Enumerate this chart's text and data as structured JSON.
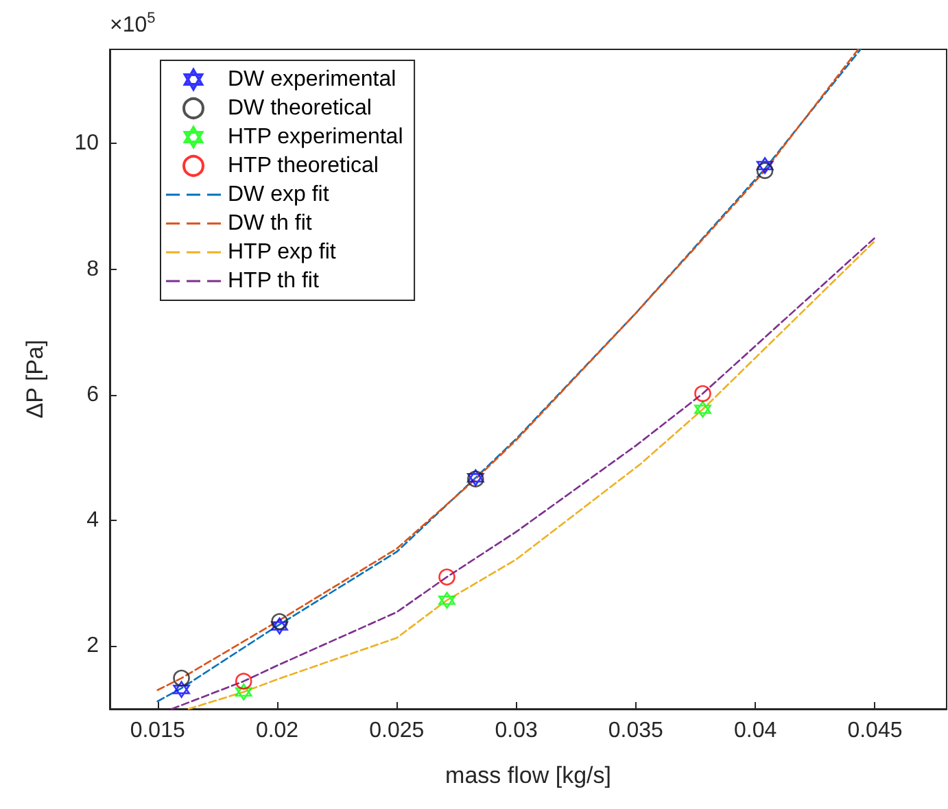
{
  "chart_data": {
    "type": "scatter",
    "xlabel": "mass flow [kg/s]",
    "ylabel": "ΔP [Pa]",
    "annotations": [
      "×10$^{5}$"
    ],
    "xlim": [
      0.013,
      0.048
    ],
    "xticks": [
      0.015,
      0.02,
      0.025,
      0.03,
      0.035,
      0.04,
      0.045
    ],
    "ylim": [
      1,
      11.5
    ],
    "yticks": [
      2,
      4,
      6,
      8,
      10
    ],
    "grid": false,
    "legend": "top left",
    "series": [
      {
        "name": "DW experimental",
        "marker": "star",
        "color": "#0000ff",
        "x": [
          0.016,
          0.0201,
          0.0283,
          0.0404
        ],
        "values": [
          1.31,
          2.32,
          4.68,
          9.65
        ]
      },
      {
        "name": "DW theoretical",
        "marker": "circle",
        "color": "#262626",
        "x": [
          0.016,
          0.0201,
          0.0283,
          0.0404
        ],
        "values": [
          1.49,
          2.39,
          4.66,
          9.57
        ]
      },
      {
        "name": "HTP experimental",
        "marker": "star",
        "color": "#00ff00",
        "x": [
          0.0186,
          0.0271,
          0.0378
        ],
        "values": [
          1.27,
          2.73,
          5.77
        ]
      },
      {
        "name": "HTP theoretical",
        "marker": "circle",
        "color": "#ff0000",
        "x": [
          0.0186,
          0.0271,
          0.0378
        ],
        "values": [
          1.44,
          3.1,
          6.02
        ]
      },
      {
        "name": "DW exp fit",
        "type": "line",
        "marker": "none",
        "line_style": "dashed",
        "color": "#0072bd",
        "x": [
          0.015,
          0.016,
          0.02,
          0.025,
          0.0283,
          0.03,
          0.035,
          0.0404,
          0.0444
        ],
        "values": [
          1.12,
          1.33,
          2.32,
          3.5,
          4.68,
          5.3,
          7.3,
          9.6,
          11.5
        ]
      },
      {
        "name": "DW th fit",
        "type": "line",
        "marker": "none",
        "line_style": "dashed",
        "color": "#d95319",
        "x": [
          0.015,
          0.016,
          0.02,
          0.025,
          0.0283,
          0.03,
          0.035,
          0.0404,
          0.0443
        ],
        "values": [
          1.3,
          1.49,
          2.39,
          3.55,
          4.66,
          5.28,
          7.3,
          9.57,
          11.5
        ]
      },
      {
        "name": "HTP exp fit",
        "type": "line",
        "marker": "none",
        "line_style": "dashed",
        "color": "#edb120",
        "x": [
          0.0163,
          0.0186,
          0.02,
          0.025,
          0.0271,
          0.03,
          0.0352,
          0.0378,
          0.045
        ],
        "values": [
          1.0,
          1.27,
          1.47,
          2.13,
          2.73,
          3.38,
          4.9,
          5.77,
          8.45
        ]
      },
      {
        "name": "HTP th fit",
        "type": "line",
        "marker": "none",
        "line_style": "dashed",
        "color": "#7e2f8e",
        "x": [
          0.0156,
          0.0186,
          0.02,
          0.025,
          0.0271,
          0.03,
          0.035,
          0.0378,
          0.045
        ],
        "values": [
          1.0,
          1.44,
          1.69,
          2.54,
          3.1,
          3.82,
          5.19,
          6.02,
          8.5
        ]
      }
    ]
  }
}
